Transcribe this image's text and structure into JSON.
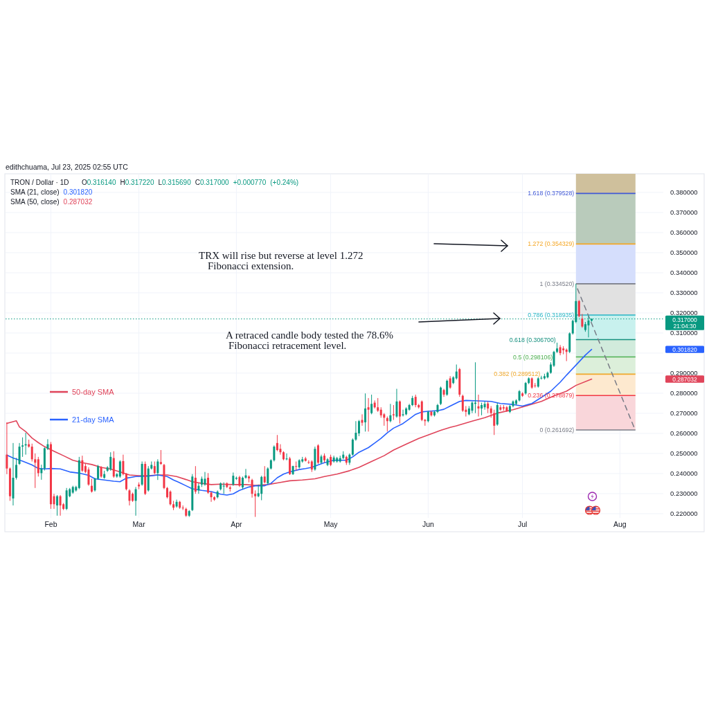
{
  "chart_data": {
    "type": "candlestick",
    "title": "TRON / Dollar · 1D",
    "subtitle": "edithchuama, Jul 23, 2025 02:55 UTC",
    "xlim": [
      "2025-01-17T14:00",
      "2025-08-14T19:00"
    ],
    "ylim": [
      0.2179,
      0.3893
    ],
    "xticks": [
      {
        "value": "2025-02-01",
        "label": "Feb"
      },
      {
        "value": "2025-03-01",
        "label": "Mar"
      },
      {
        "value": "2025-04-01",
        "label": "Apr"
      },
      {
        "value": "2025-05-01",
        "label": "May"
      },
      {
        "value": "2025-06-01",
        "label": "Jun"
      },
      {
        "value": "2025-07-01",
        "label": "Jul"
      },
      {
        "value": "2025-08-01",
        "label": "Aug"
      }
    ],
    "yticks": [
      {
        "value": 0.22,
        "label": "0.220000"
      },
      {
        "value": 0.23,
        "label": "0.230000"
      },
      {
        "value": 0.24,
        "label": "0.240000"
      },
      {
        "value": 0.25,
        "label": "0.250000"
      },
      {
        "value": 0.26,
        "label": "0.260000"
      },
      {
        "value": 0.27,
        "label": "0.270000"
      },
      {
        "value": 0.28,
        "label": "0.280000"
      },
      {
        "value": 0.29,
        "label": "0.290000"
      },
      {
        "value": 0.3,
        "label": null
      },
      {
        "value": 0.31,
        "label": "0.310000"
      },
      {
        "value": 0.32,
        "label": "0.320000"
      },
      {
        "value": 0.33,
        "label": "0.330000"
      },
      {
        "value": 0.34,
        "label": "0.340000"
      },
      {
        "value": 0.35,
        "label": "0.350000"
      },
      {
        "value": 0.36,
        "label": "0.360000"
      },
      {
        "value": 0.37,
        "label": "0.370000"
      },
      {
        "value": 0.38,
        "label": "0.380000"
      }
    ],
    "grid": true,
    "legend": "left",
    "series": [
      {
        "type": "candlestick",
        "x": [
          "2025-01-18",
          "2025-01-19",
          "2025-01-20",
          "2025-01-21",
          "2025-01-22",
          "2025-01-23",
          "2025-01-24",
          "2025-01-25",
          "2025-01-26",
          "2025-01-27",
          "2025-01-28",
          "2025-01-29",
          "2025-01-30",
          "2025-01-31",
          "2025-02-01",
          "2025-02-02",
          "2025-02-03",
          "2025-02-04",
          "2025-02-05",
          "2025-02-06",
          "2025-02-07",
          "2025-02-08",
          "2025-02-09",
          "2025-02-10",
          "2025-02-11",
          "2025-02-12",
          "2025-02-13",
          "2025-02-14",
          "2025-02-15",
          "2025-02-16",
          "2025-02-17",
          "2025-02-18",
          "2025-02-19",
          "2025-02-20",
          "2025-02-21",
          "2025-02-22",
          "2025-02-23",
          "2025-02-24",
          "2025-02-25",
          "2025-02-26",
          "2025-02-27",
          "2025-02-28",
          "2025-03-01",
          "2025-03-02",
          "2025-03-03",
          "2025-03-04",
          "2025-03-05",
          "2025-03-06",
          "2025-03-07",
          "2025-03-08",
          "2025-03-09",
          "2025-03-10",
          "2025-03-11",
          "2025-03-12",
          "2025-03-13",
          "2025-03-14",
          "2025-03-15",
          "2025-03-16",
          "2025-03-17",
          "2025-03-18",
          "2025-03-19",
          "2025-03-20",
          "2025-03-21",
          "2025-03-22",
          "2025-03-23",
          "2025-03-24",
          "2025-03-25",
          "2025-03-26",
          "2025-03-27",
          "2025-03-28",
          "2025-03-29",
          "2025-03-30",
          "2025-03-31",
          "2025-04-01",
          "2025-04-02",
          "2025-04-03",
          "2025-04-04",
          "2025-04-05",
          "2025-04-06",
          "2025-04-07",
          "2025-04-08",
          "2025-04-09",
          "2025-04-10",
          "2025-04-11",
          "2025-04-12",
          "2025-04-13",
          "2025-04-14",
          "2025-04-15",
          "2025-04-16",
          "2025-04-17",
          "2025-04-18",
          "2025-04-19",
          "2025-04-20",
          "2025-04-21",
          "2025-04-22",
          "2025-04-23",
          "2025-04-24",
          "2025-04-25",
          "2025-04-26",
          "2025-04-27",
          "2025-04-28",
          "2025-04-29",
          "2025-04-30",
          "2025-05-01",
          "2025-05-02",
          "2025-05-03",
          "2025-05-04",
          "2025-05-05",
          "2025-05-06",
          "2025-05-07",
          "2025-05-08",
          "2025-05-09",
          "2025-05-10",
          "2025-05-11",
          "2025-05-12",
          "2025-05-13",
          "2025-05-14",
          "2025-05-15",
          "2025-05-16",
          "2025-05-17",
          "2025-05-18",
          "2025-05-19",
          "2025-05-20",
          "2025-05-21",
          "2025-05-22",
          "2025-05-23",
          "2025-05-24",
          "2025-05-25",
          "2025-05-26",
          "2025-05-27",
          "2025-05-28",
          "2025-05-29",
          "2025-05-30",
          "2025-05-31",
          "2025-06-01",
          "2025-06-02",
          "2025-06-03",
          "2025-06-04",
          "2025-06-05",
          "2025-06-06",
          "2025-06-07",
          "2025-06-08",
          "2025-06-09",
          "2025-06-10",
          "2025-06-11",
          "2025-06-12",
          "2025-06-13",
          "2025-06-14",
          "2025-06-15",
          "2025-06-16",
          "2025-06-17",
          "2025-06-18",
          "2025-06-19",
          "2025-06-20",
          "2025-06-21",
          "2025-06-22",
          "2025-06-23",
          "2025-06-24",
          "2025-06-25",
          "2025-06-26",
          "2025-06-27",
          "2025-06-28",
          "2025-06-29",
          "2025-06-30",
          "2025-07-01",
          "2025-07-02",
          "2025-07-03",
          "2025-07-04",
          "2025-07-05",
          "2025-07-06",
          "2025-07-07",
          "2025-07-08",
          "2025-07-09",
          "2025-07-10",
          "2025-07-11",
          "2025-07-12",
          "2025-07-13",
          "2025-07-14",
          "2025-07-15",
          "2025-07-16",
          "2025-07-17",
          "2025-07-18",
          "2025-07-19",
          "2025-07-20",
          "2025-07-21",
          "2025-07-22",
          "2025-07-23"
        ],
        "ohlc": [
          [
            0.2494,
            0.2655,
            0.2397,
            0.2425
          ],
          [
            0.2425,
            0.243,
            0.2264,
            0.2287
          ],
          [
            0.2276,
            0.2552,
            0.2241,
            0.2379
          ],
          [
            0.2379,
            0.2478,
            0.237,
            0.2443
          ],
          [
            0.2448,
            0.2552,
            0.2443,
            0.2534
          ],
          [
            0.2534,
            0.258,
            0.2483,
            0.254
          ],
          [
            0.254,
            0.2603,
            0.2494,
            0.2546
          ],
          [
            0.2546,
            0.2569,
            0.2529,
            0.2534
          ],
          [
            0.2534,
            0.2549,
            0.246,
            0.2471
          ],
          [
            0.2471,
            0.25,
            0.2328,
            0.2454
          ],
          [
            0.2471,
            0.2483,
            0.2385,
            0.2402
          ],
          [
            0.2402,
            0.2444,
            0.2369,
            0.2425
          ],
          [
            0.2425,
            0.253,
            0.2415,
            0.2526
          ],
          [
            0.2523,
            0.2571,
            0.2517,
            0.2546
          ],
          [
            0.2546,
            0.2557,
            0.2224,
            0.2247
          ],
          [
            0.2287,
            0.2299,
            0.2224,
            0.2247
          ],
          [
            0.2241,
            0.2293,
            0.219,
            0.2287
          ],
          [
            0.2287,
            0.2293,
            0.219,
            0.2241
          ],
          [
            0.2247,
            0.2253,
            0.2218,
            0.2224
          ],
          [
            0.2224,
            0.2328,
            0.2218,
            0.2316
          ],
          [
            0.2287,
            0.2328,
            0.2282,
            0.2322
          ],
          [
            0.2305,
            0.2339,
            0.2299,
            0.2333
          ],
          [
            0.2316,
            0.2339,
            0.231,
            0.2333
          ],
          [
            0.2328,
            0.2483,
            0.2322,
            0.2466
          ],
          [
            0.2466,
            0.2489,
            0.2408,
            0.2414
          ],
          [
            0.2437,
            0.2448,
            0.2402,
            0.2408
          ],
          [
            0.242,
            0.2431,
            0.2339,
            0.2345
          ],
          [
            0.2339,
            0.2374,
            0.2305,
            0.231
          ],
          [
            0.2316,
            0.2379,
            0.231,
            0.2374
          ],
          [
            0.2374,
            0.2443,
            0.2368,
            0.2437
          ],
          [
            0.2431,
            0.2437,
            0.2379,
            0.2385
          ],
          [
            0.2379,
            0.2414,
            0.2374,
            0.2397
          ],
          [
            0.2414,
            0.2437,
            0.2408,
            0.2431
          ],
          [
            0.242,
            0.2506,
            0.2414,
            0.2483
          ],
          [
            0.2477,
            0.2511,
            0.2379,
            0.2385
          ],
          [
            0.2385,
            0.2402,
            0.2379,
            0.2397
          ],
          [
            0.2385,
            0.2466,
            0.2379,
            0.246
          ],
          [
            0.2462,
            0.2494,
            0.2391,
            0.2397
          ],
          [
            0.2397,
            0.2402,
            0.2316,
            0.2322
          ],
          [
            0.2316,
            0.2322,
            0.2241,
            0.2264
          ],
          [
            0.2299,
            0.2305,
            0.2259,
            0.2264
          ],
          [
            0.2264,
            0.2333,
            0.219,
            0.2322
          ],
          [
            0.2345,
            0.2356,
            0.2322,
            0.2336
          ],
          [
            0.2345,
            0.246,
            0.2339,
            0.2448
          ],
          [
            0.2448,
            0.246,
            0.2293,
            0.2299
          ],
          [
            0.2316,
            0.2437,
            0.231,
            0.2425
          ],
          [
            0.2425,
            0.246,
            0.242,
            0.2443
          ],
          [
            0.2437,
            0.246,
            0.2397,
            0.2402
          ],
          [
            0.2402,
            0.2471,
            0.2368,
            0.246
          ],
          [
            0.2457,
            0.2517,
            0.2443,
            0.2448
          ],
          [
            0.2443,
            0.2448,
            0.2322,
            0.2328
          ],
          [
            0.2328,
            0.2333,
            0.2276,
            0.2282
          ],
          [
            0.231,
            0.2316,
            0.2241,
            0.2247
          ],
          [
            0.2247,
            0.2264,
            0.2218,
            0.223
          ],
          [
            0.2236,
            0.227,
            0.223,
            0.2259
          ],
          [
            0.2259,
            0.2264,
            0.2224,
            0.223
          ],
          [
            0.223,
            0.2241,
            0.2218,
            0.2227
          ],
          [
            0.2224,
            0.223,
            0.2184,
            0.219
          ],
          [
            0.219,
            0.2218,
            0.2184,
            0.2213
          ],
          [
            0.2218,
            0.2397,
            0.2213,
            0.2385
          ],
          [
            0.2379,
            0.2437,
            0.2299,
            0.231
          ],
          [
            0.2316,
            0.2351,
            0.2299,
            0.2339
          ],
          [
            0.2345,
            0.2385,
            0.2333,
            0.2374
          ],
          [
            0.2345,
            0.2408,
            0.2339,
            0.2374
          ],
          [
            0.2379,
            0.2402,
            0.2299,
            0.2305
          ],
          [
            0.2305,
            0.231,
            0.2259,
            0.2282
          ],
          [
            0.2282,
            0.2287,
            0.2264,
            0.227
          ],
          [
            0.2282,
            0.2316,
            0.2276,
            0.231
          ],
          [
            0.2322,
            0.2356,
            0.2316,
            0.2351
          ],
          [
            0.2336,
            0.2356,
            0.2299,
            0.2339
          ],
          [
            0.2351,
            0.2356,
            0.2328,
            0.2333
          ],
          [
            0.2331,
            0.2339,
            0.231,
            0.2324
          ],
          [
            0.2345,
            0.2405,
            0.2339,
            0.2389
          ],
          [
            0.2374,
            0.2385,
            0.2368,
            0.2379
          ],
          [
            0.2382,
            0.2389,
            0.2333,
            0.2339
          ],
          [
            0.2331,
            0.2385,
            0.2322,
            0.2379
          ],
          [
            0.2379,
            0.2423,
            0.2374,
            0.2391
          ],
          [
            0.2385,
            0.2391,
            0.2356,
            0.2376
          ],
          [
            0.2368,
            0.2374,
            0.228,
            0.2299
          ],
          [
            0.2299,
            0.2316,
            0.2184,
            0.2287
          ],
          [
            0.2287,
            0.2345,
            0.2282,
            0.2302
          ],
          [
            0.2299,
            0.2389,
            0.2267,
            0.2383
          ],
          [
            0.2385,
            0.2437,
            0.2351,
            0.2356
          ],
          [
            0.2351,
            0.2431,
            0.2345,
            0.2425
          ],
          [
            0.2425,
            0.2471,
            0.242,
            0.2466
          ],
          [
            0.2466,
            0.254,
            0.246,
            0.2534
          ],
          [
            0.2552,
            0.2592,
            0.2511,
            0.2517
          ],
          [
            0.2523,
            0.2546,
            0.2494,
            0.2506
          ],
          [
            0.2506,
            0.2511,
            0.2466,
            0.2471
          ],
          [
            0.2471,
            0.25,
            0.2466,
            0.2475
          ],
          [
            0.2475,
            0.2483,
            0.2393,
            0.2397
          ],
          [
            0.2397,
            0.2439,
            0.2393,
            0.2437
          ],
          [
            0.2437,
            0.246,
            0.2414,
            0.2434
          ],
          [
            0.2431,
            0.2471,
            0.2425,
            0.2466
          ],
          [
            0.246,
            0.2483,
            0.2454,
            0.2471
          ],
          [
            0.2475,
            0.2483,
            0.246,
            0.2463
          ],
          [
            0.2457,
            0.2466,
            0.2448,
            0.2454
          ],
          [
            0.246,
            0.2466,
            0.2408,
            0.242
          ],
          [
            0.242,
            0.2534,
            0.2414,
            0.2523
          ],
          [
            0.254,
            0.2546,
            0.2448,
            0.2454
          ],
          [
            0.2454,
            0.2494,
            0.2448,
            0.2485
          ],
          [
            0.2489,
            0.25,
            0.2454,
            0.2466
          ],
          [
            0.2443,
            0.2477,
            0.2437,
            0.2471
          ],
          [
            0.2483,
            0.2494,
            0.2437,
            0.2443
          ],
          [
            0.246,
            0.2489,
            0.2454,
            0.248
          ],
          [
            0.246,
            0.2483,
            0.2454,
            0.2477
          ],
          [
            0.246,
            0.2489,
            0.2454,
            0.2477
          ],
          [
            0.2477,
            0.2511,
            0.2471,
            0.2494
          ],
          [
            0.2483,
            0.2489,
            0.2443,
            0.2454
          ],
          [
            0.2454,
            0.25,
            0.2443,
            0.2494
          ],
          [
            0.2494,
            0.2575,
            0.2489,
            0.2569
          ],
          [
            0.2569,
            0.2661,
            0.2563,
            0.2603
          ],
          [
            0.26,
            0.2667,
            0.2586,
            0.2661
          ],
          [
            0.2667,
            0.2695,
            0.2638,
            0.2653
          ],
          [
            0.2655,
            0.2799,
            0.2609,
            0.2724
          ],
          [
            0.273,
            0.2776,
            0.2609,
            0.2718
          ],
          [
            0.2701,
            0.2793,
            0.2695,
            0.2747
          ],
          [
            0.2753,
            0.2764,
            0.2724,
            0.273
          ],
          [
            0.273,
            0.2776,
            0.2707,
            0.2713
          ],
          [
            0.2718,
            0.273,
            0.2678,
            0.269
          ],
          [
            0.2695,
            0.2701,
            0.2638,
            0.2678
          ],
          [
            0.2676,
            0.2684,
            0.2609,
            0.2661
          ],
          [
            0.2661,
            0.2747,
            0.2655,
            0.269
          ],
          [
            0.2695,
            0.2741,
            0.2667,
            0.269
          ],
          [
            0.2684,
            0.2822,
            0.2678,
            0.2759
          ],
          [
            0.2759,
            0.2764,
            0.2649,
            0.2684
          ],
          [
            0.269,
            0.2718,
            0.2684,
            0.2695
          ],
          [
            0.2695,
            0.273,
            0.269,
            0.2724
          ],
          [
            0.2718,
            0.2747,
            0.2713,
            0.2741
          ],
          [
            0.2741,
            0.2787,
            0.2736,
            0.2776
          ],
          [
            0.2782,
            0.2793,
            0.273,
            0.2741
          ],
          [
            0.2741,
            0.2747,
            0.2724,
            0.273
          ],
          [
            0.2759,
            0.2764,
            0.2661,
            0.2667
          ],
          [
            0.2667,
            0.2672,
            0.2638,
            0.2661
          ],
          [
            0.2661,
            0.2713,
            0.2655,
            0.2707
          ],
          [
            0.2707,
            0.2713,
            0.2684,
            0.269
          ],
          [
            0.269,
            0.2713,
            0.2684,
            0.2707
          ],
          [
            0.2707,
            0.2747,
            0.2701,
            0.2741
          ],
          [
            0.2747,
            0.2833,
            0.2741,
            0.2828
          ],
          [
            0.2816,
            0.2822,
            0.2782,
            0.2793
          ],
          [
            0.2793,
            0.2868,
            0.2787,
            0.2862
          ],
          [
            0.2874,
            0.2885,
            0.2822,
            0.2828
          ],
          [
            0.2851,
            0.2885,
            0.2845,
            0.2879
          ],
          [
            0.2874,
            0.2943,
            0.2868,
            0.2908
          ],
          [
            0.292,
            0.2926,
            0.2782,
            0.2793
          ],
          [
            0.2787,
            0.2793,
            0.2707,
            0.2713
          ],
          [
            0.2718,
            0.2736,
            0.2684,
            0.2707
          ],
          [
            0.2695,
            0.2736,
            0.269,
            0.2724
          ],
          [
            0.2713,
            0.2759,
            0.2701,
            0.2753
          ],
          [
            0.2747,
            0.2954,
            0.2701,
            0.2753
          ],
          [
            0.2735,
            0.2793,
            0.2684,
            0.2724
          ],
          [
            0.2724,
            0.2753,
            0.269,
            0.2741
          ],
          [
            0.273,
            0.2759,
            0.2718,
            0.2747
          ],
          [
            0.2749,
            0.2759,
            0.2701,
            0.2724
          ],
          [
            0.2724,
            0.2736,
            0.2678,
            0.2701
          ],
          [
            0.2701,
            0.2718,
            0.2592,
            0.2638
          ],
          [
            0.2644,
            0.2753,
            0.2638,
            0.2741
          ],
          [
            0.273,
            0.2741,
            0.2713,
            0.2718
          ],
          [
            0.273,
            0.2741,
            0.2713,
            0.2724
          ],
          [
            0.273,
            0.2736,
            0.2707,
            0.2713
          ],
          [
            0.2707,
            0.2741,
            0.2701,
            0.2736
          ],
          [
            0.2736,
            0.2764,
            0.273,
            0.2759
          ],
          [
            0.2747,
            0.277,
            0.2741,
            0.2764
          ],
          [
            0.2764,
            0.2816,
            0.2759,
            0.281
          ],
          [
            0.2799,
            0.2805,
            0.2782,
            0.2787
          ],
          [
            0.2799,
            0.2856,
            0.2793,
            0.2851
          ],
          [
            0.2851,
            0.2879,
            0.2845,
            0.2874
          ],
          [
            0.2874,
            0.2879,
            0.2822,
            0.2828
          ],
          [
            0.2839,
            0.2851,
            0.2828,
            0.2836
          ],
          [
            0.2833,
            0.2879,
            0.2828,
            0.2874
          ],
          [
            0.2874,
            0.2887,
            0.2868,
            0.2877
          ],
          [
            0.2874,
            0.2897,
            0.2868,
            0.2885
          ],
          [
            0.2879,
            0.2908,
            0.2874,
            0.2902
          ],
          [
            0.2902,
            0.2954,
            0.2897,
            0.2943
          ],
          [
            0.2937,
            0.3011,
            0.2931,
            0.3006
          ],
          [
            0.3006,
            0.3052,
            0.3,
            0.3023
          ],
          [
            0.3029,
            0.304,
            0.2989,
            0.3
          ],
          [
            0.3023,
            0.3034,
            0.2994,
            0.3014
          ],
          [
            0.3017,
            0.3023,
            0.296,
            0.3006
          ],
          [
            0.3006,
            0.3103,
            0.3,
            0.3098
          ],
          [
            0.3098,
            0.3167,
            0.3092,
            0.3161
          ],
          [
            0.3155,
            0.3345,
            0.3149,
            0.3259
          ],
          [
            0.3259,
            0.3264,
            0.3178,
            0.3184
          ],
          [
            0.3172,
            0.3195,
            0.3126,
            0.3132
          ],
          [
            0.3115,
            0.3155,
            0.3106,
            0.3144
          ],
          [
            0.3138,
            0.3184,
            0.3078,
            0.31623
          ],
          [
            0.31614,
            0.31722,
            0.31569,
            0.317
          ]
        ],
        "colors": [
          "#f23645",
          "#f23645",
          "#089981",
          "#089981",
          "#089981",
          "#089981",
          "#089981",
          "#f23645",
          "#f23645",
          "#f23645",
          "#f23645",
          "#089981",
          "#089981",
          "#089981",
          "#f23645",
          "#f23645",
          "#089981",
          "#f23645",
          "#f23645",
          "#089981",
          "#089981",
          "#089981",
          "#089981",
          "#089981",
          "#f23645",
          "#f23645",
          "#f23645",
          "#f23645",
          "#089981",
          "#089981",
          "#f23645",
          "#089981",
          "#089981",
          "#089981",
          "#f23645",
          "#089981",
          "#089981",
          "#f23645",
          "#f23645",
          "#f23645",
          "#f23645",
          "#089981",
          "#f23645",
          "#089981",
          "#f23645",
          "#089981",
          "#089981",
          "#f23645",
          "#089981",
          "#f23645",
          "#f23645",
          "#f23645",
          "#f23645",
          "#f23645",
          "#089981",
          "#f23645",
          "#f23645",
          "#f23645",
          "#089981",
          "#089981",
          "#f23645",
          "#089981",
          "#089981",
          "#089981",
          "#f23645",
          "#f23645",
          "#f23645",
          "#089981",
          "#089981",
          "#089981",
          "#f23645",
          "#f23645",
          "#089981",
          "#089981",
          "#f23645",
          "#089981",
          "#089981",
          "#f23645",
          "#f23645",
          "#f23645",
          "#089981",
          "#089981",
          "#f23645",
          "#089981",
          "#089981",
          "#089981",
          "#f23645",
          "#f23645",
          "#f23645",
          "#089981",
          "#f23645",
          "#089981",
          "#f23645",
          "#089981",
          "#089981",
          "#f23645",
          "#f23645",
          "#f23645",
          "#089981",
          "#f23645",
          "#089981",
          "#f23645",
          "#089981",
          "#f23645",
          "#089981",
          "#089981",
          "#089981",
          "#089981",
          "#f23645",
          "#089981",
          "#089981",
          "#089981",
          "#089981",
          "#f23645",
          "#089981",
          "#f23645",
          "#089981",
          "#f23645",
          "#f23645",
          "#f23645",
          "#f23645",
          "#f23645",
          "#089981",
          "#f23645",
          "#089981",
          "#f23645",
          "#089981",
          "#089981",
          "#089981",
          "#089981",
          "#f23645",
          "#f23645",
          "#f23645",
          "#f23645",
          "#089981",
          "#f23645",
          "#089981",
          "#089981",
          "#089981",
          "#f23645",
          "#089981",
          "#f23645",
          "#089981",
          "#089981",
          "#f23645",
          "#f23645",
          "#f23645",
          "#089981",
          "#089981",
          "#089981",
          "#f23645",
          "#089981",
          "#089981",
          "#f23645",
          "#f23645",
          "#f23645",
          "#089981",
          "#f23645",
          "#f23645",
          "#f23645",
          "#089981",
          "#089981",
          "#089981",
          "#089981",
          "#f23645",
          "#089981",
          "#089981",
          "#f23645",
          "#f23645",
          "#089981",
          "#089981",
          "#089981",
          "#089981",
          "#089981",
          "#089981",
          "#089981",
          "#f23645",
          "#f23645",
          "#f23645",
          "#089981",
          "#089981",
          "#089981",
          "#f23645",
          "#f23645",
          "#089981",
          "#089981",
          "#089981"
        ]
      },
      {
        "type": "line",
        "name": "50-day SMA",
        "color": "#e0445a",
        "x": [
          "2025-01-18",
          "2025-01-21",
          "2025-01-22",
          "2025-01-24",
          "2025-01-26",
          "2025-01-28",
          "2025-01-30",
          "2025-02-02",
          "2025-02-05",
          "2025-02-08",
          "2025-02-11",
          "2025-02-14",
          "2025-02-17",
          "2025-02-20",
          "2025-02-23",
          "2025-02-26",
          "2025-03-01",
          "2025-03-04",
          "2025-03-07",
          "2025-03-10",
          "2025-03-13",
          "2025-03-16",
          "2025-03-18",
          "2025-03-21",
          "2025-03-24",
          "2025-03-27",
          "2025-03-31",
          "2025-04-04",
          "2025-04-07",
          "2025-04-11",
          "2025-04-15",
          "2025-04-18",
          "2025-04-22",
          "2025-04-26",
          "2025-04-29",
          "2025-05-03",
          "2025-05-07",
          "2025-05-10",
          "2025-05-14",
          "2025-05-18",
          "2025-05-21",
          "2025-05-25",
          "2025-05-29",
          "2025-06-01",
          "2025-06-05",
          "2025-06-08",
          "2025-06-10",
          "2025-06-15",
          "2025-06-19",
          "2025-06-23",
          "2025-06-28",
          "2025-07-02",
          "2025-07-07",
          "2025-07-11",
          "2025-07-15",
          "2025-07-18",
          "2025-07-23"
        ],
        "values": [
          0.265,
          0.2663,
          0.2632,
          0.2609,
          0.2577,
          0.2554,
          0.2534,
          0.2511,
          0.2489,
          0.2466,
          0.2454,
          0.2445,
          0.2431,
          0.2422,
          0.2408,
          0.2393,
          0.2389,
          0.2389,
          0.2393,
          0.2393,
          0.2385,
          0.237,
          0.2359,
          0.2351,
          0.2345,
          0.2347,
          0.2345,
          0.2345,
          0.2341,
          0.2345,
          0.2356,
          0.2364,
          0.2368,
          0.2374,
          0.2385,
          0.2397,
          0.2414,
          0.2431,
          0.246,
          0.2489,
          0.2517,
          0.2546,
          0.2575,
          0.2592,
          0.2615,
          0.263,
          0.2638,
          0.2661,
          0.2678,
          0.2701,
          0.2718,
          0.2736,
          0.2759,
          0.2787,
          0.281,
          0.2839,
          0.287032
        ]
      },
      {
        "type": "line",
        "name": "21-day SMA",
        "color": "#2962ff",
        "x": [
          "2025-01-18",
          "2025-01-20",
          "2025-01-23",
          "2025-01-26",
          "2025-01-28",
          "2025-01-30",
          "2025-02-01",
          "2025-02-04",
          "2025-02-07",
          "2025-02-10",
          "2025-02-13",
          "2025-02-15",
          "2025-02-18",
          "2025-02-21",
          "2025-02-23",
          "2025-02-25",
          "2025-02-28",
          "2025-03-04",
          "2025-03-07",
          "2025-03-10",
          "2025-03-12",
          "2025-03-14",
          "2025-03-16",
          "2025-03-18",
          "2025-03-21",
          "2025-03-24",
          "2025-03-27",
          "2025-03-29",
          "2025-03-31",
          "2025-04-02",
          "2025-04-05",
          "2025-04-07",
          "2025-04-10",
          "2025-04-12",
          "2025-04-14",
          "2025-04-16",
          "2025-04-18",
          "2025-04-21",
          "2025-04-23",
          "2025-04-25",
          "2025-04-27",
          "2025-04-29",
          "2025-05-02",
          "2025-05-04",
          "2025-05-06",
          "2025-05-08",
          "2025-05-10",
          "2025-05-13",
          "2025-05-15",
          "2025-05-17",
          "2025-05-19",
          "2025-05-21",
          "2025-05-24",
          "2025-05-26",
          "2025-05-28",
          "2025-05-30",
          "2025-06-01",
          "2025-06-04",
          "2025-06-06",
          "2025-06-08",
          "2025-06-11",
          "2025-06-13",
          "2025-06-17",
          "2025-06-21",
          "2025-06-24",
          "2025-06-28",
          "2025-07-01",
          "2025-07-04",
          "2025-07-07",
          "2025-07-10",
          "2025-07-13",
          "2025-07-15",
          "2025-07-18",
          "2025-07-21",
          "2025-07-23"
        ],
        "values": [
          0.2492,
          0.2477,
          0.2462,
          0.2443,
          0.2425,
          0.2423,
          0.2425,
          0.2423,
          0.2408,
          0.2402,
          0.2391,
          0.2374,
          0.2368,
          0.2362,
          0.2359,
          0.2377,
          0.2385,
          0.2387,
          0.2393,
          0.2385,
          0.2368,
          0.2354,
          0.2339,
          0.2324,
          0.2316,
          0.231,
          0.2297,
          0.2293,
          0.2299,
          0.2316,
          0.2333,
          0.2339,
          0.2339,
          0.2351,
          0.2379,
          0.2397,
          0.2408,
          0.242,
          0.2425,
          0.2431,
          0.2443,
          0.2454,
          0.2466,
          0.2466,
          0.2466,
          0.2483,
          0.2506,
          0.2529,
          0.2552,
          0.2575,
          0.2603,
          0.2626,
          0.2649,
          0.2672,
          0.2695,
          0.2707,
          0.271,
          0.2713,
          0.272,
          0.2736,
          0.2759,
          0.2764,
          0.2762,
          0.2759,
          0.2749,
          0.2744,
          0.2736,
          0.2749,
          0.2779,
          0.281,
          0.2855,
          0.289,
          0.294,
          0.299,
          0.30182
        ]
      },
      {
        "type": "line",
        "color": "#787b86",
        "line_style": "dashed",
        "x": [
          "2025-07-18T12:00",
          "2025-08-05T12:00"
        ],
        "values": [
          0.332,
          0.263
        ]
      }
    ],
    "ref_lines": [
      {
        "axis": "y",
        "value": 0.379528,
        "label": "1.618 (0.379528)",
        "color": "#4159d6"
      },
      {
        "axis": "y",
        "value": 0.354329,
        "label": "1.272 (0.354329)",
        "color": "#f5a623"
      },
      {
        "axis": "y",
        "value": 0.33452,
        "label": "1 (0.334520)",
        "color": "#787b86"
      },
      {
        "axis": "y",
        "value": 0.318935,
        "label": "0.786 (0.318935)",
        "color": "#26b5c4"
      },
      {
        "axis": "y",
        "value": 0.3067,
        "label": "0.618 (0.306700)",
        "color": "#138f7e"
      },
      {
        "axis": "y",
        "value": 0.298106,
        "label": "0.5 (0.298106)",
        "color": "#4caf50"
      },
      {
        "axis": "y",
        "value": 0.289512,
        "label": "0.382 (0.289512)",
        "color": "#f0a82a"
      },
      {
        "axis": "y",
        "value": 0.278879,
        "label": "0.236 (0.278879)",
        "color": "#f23645"
      },
      {
        "axis": "y",
        "value": 0.261692,
        "label": "0 (0.261692)",
        "color": "#787b86"
      },
      {
        "axis": "y",
        "value": 0.317,
        "label": "0.317000",
        "color": "#089981",
        "line_style": "dotted"
      }
    ],
    "bands": [
      {
        "axis": "y",
        "from": 0.261692,
        "to": 0.278879,
        "color": "#f9d6da"
      },
      {
        "axis": "y",
        "from": 0.278879,
        "to": 0.289512,
        "color": "#fde9cf"
      },
      {
        "axis": "y",
        "from": 0.289512,
        "to": 0.298106,
        "color": "#dcefda"
      },
      {
        "axis": "y",
        "from": 0.298106,
        "to": 0.3067,
        "color": "#d1ebdc"
      },
      {
        "axis": "y",
        "from": 0.3067,
        "to": 0.318935,
        "color": "#c8f1ee"
      },
      {
        "axis": "y",
        "from": 0.318935,
        "to": 0.33452,
        "color": "#e1e1e1"
      },
      {
        "axis": "y",
        "from": 0.33452,
        "to": 0.354329,
        "color": "#d5defc"
      },
      {
        "axis": "y",
        "from": 0.354329,
        "to": 0.379528,
        "color": "#b9cbbb"
      },
      {
        "axis": "y",
        "from": 0.379528,
        "to": 0.3893,
        "color": "#cfc09c"
      }
    ],
    "annotations": [
      "O0.316140 H0.317220 L0.315690 C0.317000 +0.000770 (+0.24%)",
      "SMA (21, close) 0.301820",
      "SMA (50, close) 0.287032",
      "TRX will rise but reverse at level 1.272\nFibonacci extension.",
      "A retraced candle body tested the 78.6%\nFibonacci retracement level.",
      "21:04:30",
      "0.301820",
      "0.287032"
    ]
  }
}
